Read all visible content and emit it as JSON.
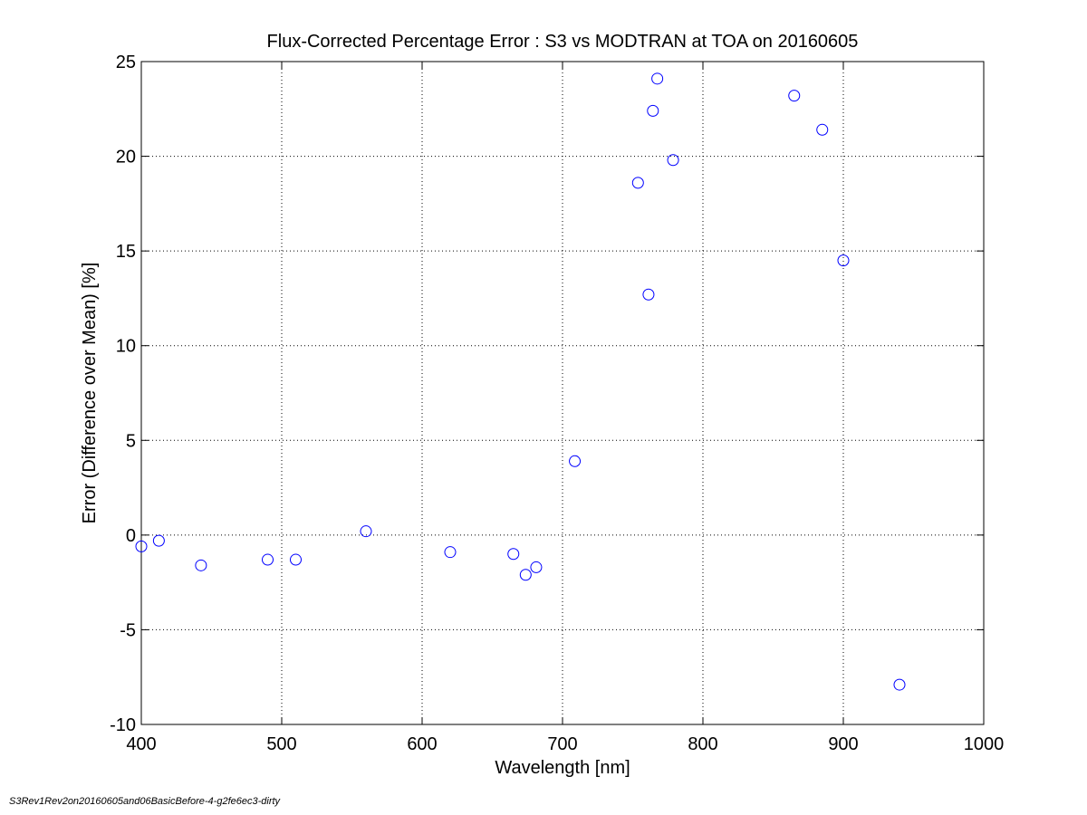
{
  "chart_data": {
    "type": "scatter",
    "title": "Flux-Corrected Percentage Error : S3 vs MODTRAN at TOA on 20160605",
    "xlabel": "Wavelength [nm]",
    "ylabel": "Error (Difference over Mean) [%]",
    "xlim": [
      400,
      1000
    ],
    "ylim": [
      -10,
      25
    ],
    "xticks": [
      "400",
      "500",
      "600",
      "700",
      "800",
      "900",
      "1000"
    ],
    "yticks": [
      "-10",
      "-5",
      "0",
      "5",
      "10",
      "15",
      "20",
      "25"
    ],
    "grid": true,
    "marker": "circle",
    "marker_color": "#0000ff",
    "series": [
      {
        "points": [
          {
            "x": 400,
            "y": -0.6
          },
          {
            "x": 412.5,
            "y": -0.3
          },
          {
            "x": 442.5,
            "y": -1.6
          },
          {
            "x": 490,
            "y": -1.3
          },
          {
            "x": 510,
            "y": -1.3
          },
          {
            "x": 560,
            "y": 0.2
          },
          {
            "x": 620,
            "y": -0.9
          },
          {
            "x": 665,
            "y": -1.0
          },
          {
            "x": 673.75,
            "y": -2.1
          },
          {
            "x": 681.25,
            "y": -1.7
          },
          {
            "x": 708.75,
            "y": 3.9
          },
          {
            "x": 753.75,
            "y": 18.6
          },
          {
            "x": 761.25,
            "y": 12.7
          },
          {
            "x": 764.375,
            "y": 22.4
          },
          {
            "x": 767.5,
            "y": 24.1
          },
          {
            "x": 778.75,
            "y": 19.8
          },
          {
            "x": 865,
            "y": 23.2
          },
          {
            "x": 885,
            "y": 21.4
          },
          {
            "x": 900,
            "y": 14.5
          },
          {
            "x": 940,
            "y": -7.9
          }
        ]
      }
    ]
  },
  "footer": {
    "text": "S3Rev1Rev2on20160605and06BasicBefore-4-g2fe6ec3-dirty"
  }
}
